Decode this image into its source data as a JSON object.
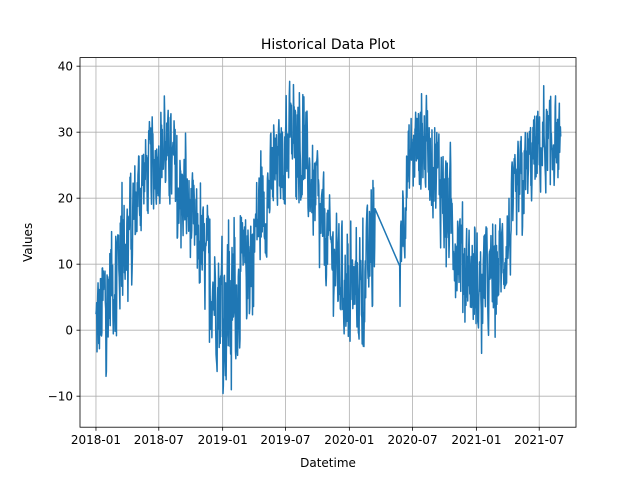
{
  "chart_data": {
    "type": "line",
    "title": "Historical Data Plot",
    "xlabel": "Datetime",
    "ylabel": "Values",
    "xlim": [
      "2017-11-16",
      "2021-10-15"
    ],
    "ylim": [
      -14.7,
      41.3
    ],
    "grid": true,
    "x_ticks": [
      "2018-01",
      "2018-07",
      "2019-01",
      "2019-07",
      "2020-01",
      "2020-07",
      "2021-01",
      "2021-07"
    ],
    "y_ticks": [
      -10,
      0,
      10,
      20,
      30,
      40
    ],
    "series": [
      {
        "color": "#1f77b4",
        "x_start": "2018-01-01",
        "x_end": "2021-09-01",
        "gaps": [
          {
            "from": "2020-03-15",
            "to": "2020-05-25"
          }
        ],
        "seasonal_envelope": [
          {
            "date": "2018-01-01",
            "low": -12,
            "high": 12
          },
          {
            "date": "2018-02-15",
            "low": -5,
            "high": 20
          },
          {
            "date": "2018-04-01",
            "low": 2,
            "high": 27
          },
          {
            "date": "2018-05-15",
            "low": 14,
            "high": 32
          },
          {
            "date": "2018-07-15",
            "low": 18,
            "high": 36
          },
          {
            "date": "2018-09-15",
            "low": 10,
            "high": 30
          },
          {
            "date": "2018-11-15",
            "low": -2,
            "high": 20
          },
          {
            "date": "2019-01-15",
            "low": -12,
            "high": 17
          },
          {
            "date": "2019-03-01",
            "low": -5,
            "high": 19
          },
          {
            "date": "2019-04-15",
            "low": 5,
            "high": 29
          },
          {
            "date": "2019-06-01",
            "low": 14,
            "high": 33
          },
          {
            "date": "2019-07-15",
            "low": 20,
            "high": 38
          },
          {
            "date": "2019-09-01",
            "low": 14,
            "high": 35
          },
          {
            "date": "2019-10-15",
            "low": 6,
            "high": 25
          },
          {
            "date": "2019-12-15",
            "low": -3,
            "high": 17
          },
          {
            "date": "2020-02-01",
            "low": -5,
            "high": 16
          },
          {
            "date": "2020-03-15",
            "low": 2,
            "high": 24
          },
          {
            "date": "2020-05-25",
            "low": 3,
            "high": 26
          },
          {
            "date": "2020-07-01",
            "low": 20,
            "high": 37
          },
          {
            "date": "2020-08-15",
            "low": 18,
            "high": 38
          },
          {
            "date": "2020-10-01",
            "low": 8,
            "high": 33
          },
          {
            "date": "2020-11-15",
            "low": 2,
            "high": 23
          },
          {
            "date": "2021-01-01",
            "low": -4,
            "high": 17
          },
          {
            "date": "2021-02-15",
            "low": -3,
            "high": 17
          },
          {
            "date": "2021-04-01",
            "low": 3,
            "high": 24
          },
          {
            "date": "2021-05-15",
            "low": 14,
            "high": 33
          },
          {
            "date": "2021-07-01",
            "low": 18,
            "high": 37
          },
          {
            "date": "2021-08-15",
            "low": 20,
            "high": 38
          },
          {
            "date": "2021-09-01",
            "low": 23,
            "high": 36
          }
        ]
      }
    ]
  }
}
